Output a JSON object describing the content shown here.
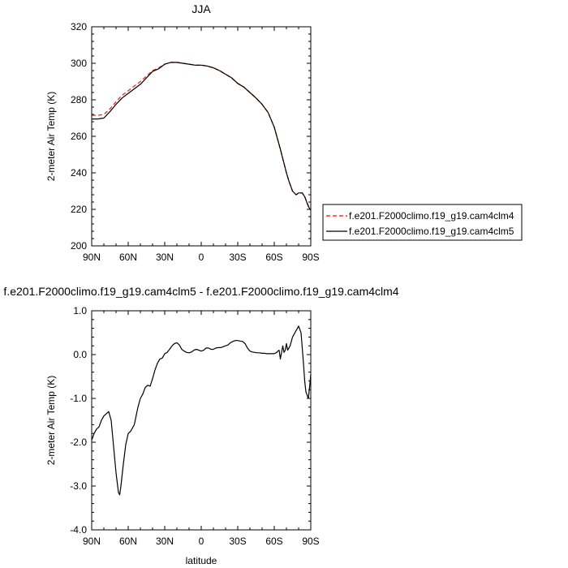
{
  "chart_data": [
    {
      "type": "line",
      "title": "JJA",
      "xlabel": "",
      "ylabel": "2-meter Air Temp (K)",
      "ylim": [
        200,
        320
      ],
      "xlim": [
        90,
        -90
      ],
      "x_ticks": [
        "90N",
        "60N",
        "30N",
        "0",
        "30S",
        "60S",
        "90S"
      ],
      "y_ticks": [
        "200",
        "220",
        "240",
        "260",
        "280",
        "300",
        "320"
      ],
      "legend_position": "right",
      "series": [
        {
          "name": "f.e201.F2000climo.f19_g19.cam4clm4",
          "color": "#e8392d",
          "dashed": true,
          "x": [
            90,
            85,
            80,
            75,
            70,
            65,
            60,
            55,
            50,
            45,
            40,
            35,
            30,
            25,
            20,
            15,
            10,
            5,
            0,
            -5,
            -10,
            -15,
            -20,
            -25,
            -30,
            -35,
            -40,
            -45,
            -50,
            -55,
            -60,
            -65,
            -70,
            -72,
            -75,
            -78,
            -80,
            -83,
            -85,
            -88,
            -90
          ],
          "values": [
            271.5,
            271.5,
            272,
            275,
            279,
            282.5,
            285,
            287.5,
            290,
            293,
            296,
            297.5,
            299.5,
            300.5,
            300.5,
            300,
            299.5,
            299,
            299,
            298.5,
            297.5,
            296,
            294,
            292,
            289,
            287,
            284,
            281,
            277.5,
            273,
            265,
            253,
            240,
            235.5,
            230,
            228,
            229,
            229,
            227,
            222,
            220
          ]
        },
        {
          "name": "f.e201.F2000climo.f19_g19.cam4clm5",
          "color": "#000000",
          "dashed": false,
          "x": [
            90,
            85,
            80,
            75,
            70,
            65,
            60,
            55,
            50,
            45,
            40,
            35,
            30,
            25,
            20,
            15,
            10,
            5,
            0,
            -5,
            -10,
            -15,
            -20,
            -25,
            -30,
            -35,
            -40,
            -45,
            -50,
            -55,
            -60,
            -65,
            -70,
            -72,
            -75,
            -78,
            -80,
            -83,
            -85,
            -88,
            -90
          ],
          "values": [
            269.5,
            269.5,
            270,
            273.5,
            277.5,
            281,
            283.5,
            286,
            288.5,
            292,
            295.5,
            297,
            299.5,
            300.5,
            300.5,
            300,
            299.5,
            299,
            299,
            298.5,
            297.5,
            296,
            294,
            292,
            289,
            287,
            284,
            281,
            277.5,
            273,
            265,
            253,
            240,
            235.5,
            230,
            228,
            229,
            229,
            227,
            221.5,
            219.5
          ]
        }
      ]
    },
    {
      "type": "line",
      "title": "f.e201.F2000climo.f19_g19.cam4clm5 - f.e201.F2000climo.f19_g19.cam4clm4",
      "xlabel": "latitude",
      "ylabel": "2-meter Air Temp (K)",
      "ylim": [
        -4,
        1
      ],
      "xlim": [
        90,
        -90
      ],
      "x_ticks": [
        "90N",
        "60N",
        "30N",
        "0",
        "30S",
        "60S",
        "90S"
      ],
      "y_ticks": [
        "-4.0",
        "-3.0",
        "-2.0",
        "-1.0",
        "0.0",
        "1.0"
      ],
      "series": [
        {
          "color": "#000000",
          "x": [
            90,
            88,
            86,
            84,
            82,
            80,
            78,
            76,
            74,
            72,
            70,
            68,
            67,
            66,
            64,
            62,
            60,
            58,
            55,
            52,
            50,
            48,
            46,
            44,
            42,
            40,
            38,
            36,
            34,
            32,
            30,
            28,
            26,
            24,
            22,
            20,
            18,
            16,
            14,
            12,
            10,
            8,
            6,
            4,
            2,
            0,
            -2,
            -4,
            -6,
            -8,
            -10,
            -12,
            -14,
            -16,
            -18,
            -20,
            -22,
            -24,
            -26,
            -28,
            -30,
            -32,
            -34,
            -36,
            -38,
            -40,
            -42,
            -44,
            -46,
            -48,
            -50,
            -52,
            -54,
            -56,
            -58,
            -60,
            -62,
            -63,
            -64,
            -65,
            -66,
            -67,
            -68,
            -69,
            -70,
            -71,
            -72,
            -73,
            -74,
            -75,
            -76,
            -77,
            -78,
            -79,
            -80,
            -82,
            -84,
            -85,
            -86,
            -88,
            -89,
            -90
          ],
          "values": [
            -1.95,
            -1.8,
            -1.7,
            -1.65,
            -1.5,
            -1.4,
            -1.35,
            -1.3,
            -1.5,
            -2.1,
            -2.7,
            -3.15,
            -3.2,
            -3.0,
            -2.5,
            -2.05,
            -1.8,
            -1.75,
            -1.6,
            -1.2,
            -1.0,
            -0.9,
            -0.75,
            -0.7,
            -0.72,
            -0.55,
            -0.35,
            -0.2,
            -0.1,
            -0.08,
            0.02,
            0.05,
            0.12,
            0.2,
            0.25,
            0.27,
            0.22,
            0.12,
            0.08,
            0.05,
            0.04,
            0.06,
            0.1,
            0.12,
            0.1,
            0.08,
            0.1,
            0.15,
            0.15,
            0.12,
            0.12,
            0.15,
            0.16,
            0.16,
            0.18,
            0.2,
            0.22,
            0.27,
            0.3,
            0.32,
            0.32,
            0.31,
            0.3,
            0.25,
            0.15,
            0.08,
            0.06,
            0.05,
            0.04,
            0.04,
            0.03,
            0.03,
            0.02,
            0.02,
            0.02,
            0.02,
            0.05,
            0.08,
            0.1,
            -0.1,
            0.05,
            0.2,
            0.05,
            0.1,
            0.25,
            0.1,
            0.15,
            0.2,
            0.3,
            0.4,
            0.45,
            0.5,
            0.55,
            0.6,
            0.65,
            0.5,
            -0.2,
            -0.6,
            -0.85,
            -1.0,
            -0.75,
            -0.45
          ]
        }
      ]
    }
  ]
}
